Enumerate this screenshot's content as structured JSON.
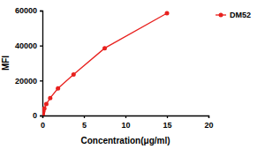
{
  "chart_data": {
    "type": "line",
    "x_label": "Concentration(μg/ml)",
    "y_label": "MFI",
    "x": [
      0.0146,
      0.0293,
      0.0586,
      0.117,
      0.234,
      0.469,
      0.9375,
      1.875,
      3.75,
      7.5,
      15
    ],
    "series": [
      {
        "name": "DM52",
        "color": "#e8211e",
        "marker": "circle",
        "line_style": "solid",
        "values": [
          500,
          900,
          1500,
          2500,
          4000,
          6500,
          10000,
          15500,
          23500,
          38500,
          58500
        ]
      }
    ],
    "xlim": [
      0,
      20
    ],
    "xticks": [
      0,
      5,
      10,
      15,
      20
    ],
    "ylim": [
      0,
      60000
    ],
    "yticks": [
      0,
      20000,
      40000,
      60000
    ],
    "grid": false,
    "legend": "top-right"
  }
}
